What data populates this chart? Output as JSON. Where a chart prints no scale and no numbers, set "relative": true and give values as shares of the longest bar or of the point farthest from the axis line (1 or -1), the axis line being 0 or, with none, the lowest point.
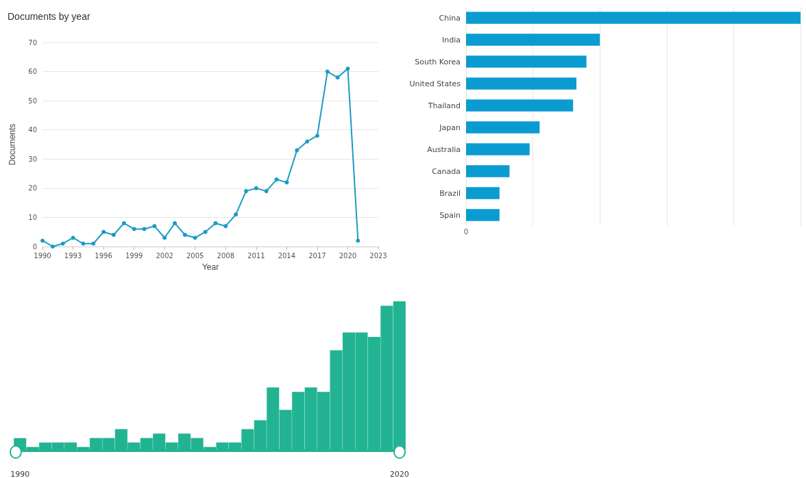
{
  "chart_data": [
    {
      "type": "line",
      "title": "Documents by year",
      "xlabel": "Year",
      "ylabel": "Documents",
      "color": "#1a9bc4",
      "marker": "circle",
      "grid": "y",
      "x": [
        1990,
        1991,
        1992,
        1993,
        1994,
        1995,
        1996,
        1997,
        1998,
        1999,
        2000,
        2001,
        2002,
        2003,
        2004,
        2005,
        2006,
        2007,
        2008,
        2009,
        2010,
        2011,
        2012,
        2013,
        2014,
        2015,
        2016,
        2017,
        2018,
        2019,
        2020,
        2021
      ],
      "values": [
        2,
        0,
        1,
        3,
        1,
        1,
        5,
        4,
        8,
        6,
        6,
        7,
        3,
        8,
        4,
        3,
        5,
        8,
        7,
        11,
        19,
        20,
        19,
        23,
        22,
        33,
        36,
        38,
        60,
        58,
        61,
        2
      ],
      "xlim": [
        1990,
        2023
      ],
      "xticks": [
        1990,
        1993,
        1996,
        1999,
        2002,
        2005,
        2008,
        2011,
        2014,
        2017,
        2020,
        2023
      ],
      "ylim": [
        0,
        70
      ],
      "yticks": [
        0,
        10,
        20,
        30,
        40,
        50,
        60,
        70
      ]
    },
    {
      "type": "bar",
      "orientation": "horizontal",
      "relative": true,
      "grid": "x",
      "color": "#0a9cd0",
      "categories": [
        "China",
        "India",
        "South Korea",
        "United States",
        "Thailand",
        "Japan",
        "Australia",
        "Canada",
        "Brazil",
        "Spain"
      ],
      "values": [
        1,
        0.4,
        0.36,
        0.33,
        0.32,
        0.22,
        0.19,
        0.13,
        0.1,
        0.1
      ],
      "annotations": [
        "0"
      ]
    },
    {
      "type": "bar",
      "relative": true,
      "color": "#22b393",
      "categories": [
        "1990",
        null,
        null,
        null,
        null,
        null,
        null,
        null,
        null,
        null,
        null,
        null,
        null,
        null,
        null,
        null,
        null,
        null,
        null,
        null,
        null,
        null,
        null,
        null,
        null,
        null,
        null,
        null,
        null,
        null,
        "2020"
      ],
      "values": [
        0.08,
        0.02,
        0.05,
        0.05,
        0.05,
        0.02,
        0.08,
        0.08,
        0.14,
        0.05,
        0.08,
        0.11,
        0.05,
        0.11,
        0.08,
        0.02,
        0.05,
        0.05,
        0.14,
        0.2,
        0.42,
        0.27,
        0.39,
        0.42,
        0.39,
        0.67,
        0.79,
        0.79,
        0.76,
        0.97,
        1
      ]
    }
  ]
}
